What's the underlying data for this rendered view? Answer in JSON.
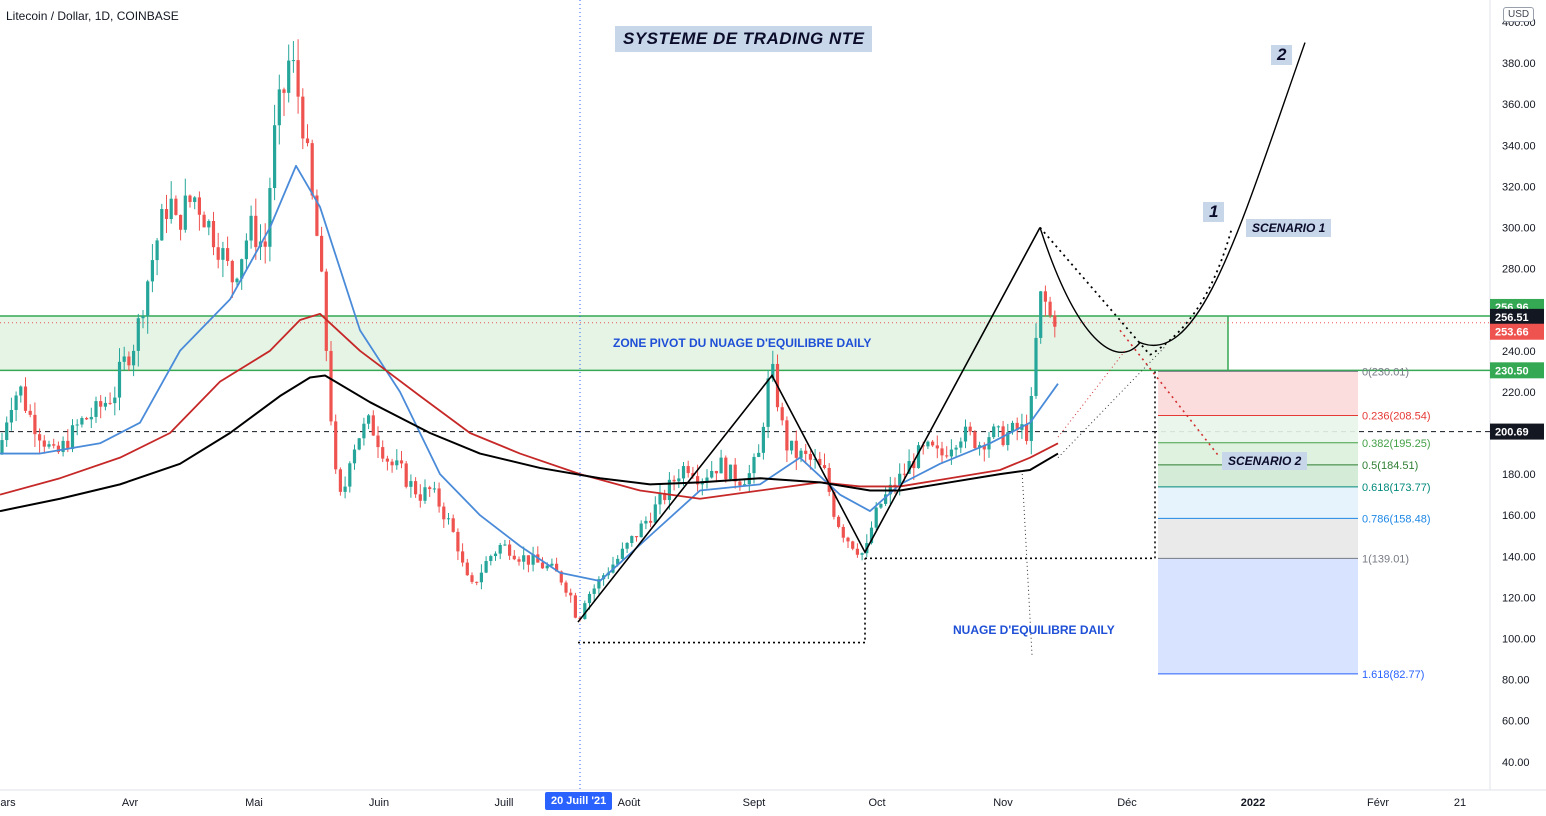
{
  "header": {
    "symbol": "Litecoin / Dollar, 1D, COINBASE"
  },
  "title_box": "SYSTEME DE TRADING NTE",
  "currency": "USD",
  "colors": {
    "up": "#26a69a",
    "down": "#ef5350",
    "ema_fast": "#4a8bd9",
    "ema_mid": "#c62828",
    "ema_slow": "#000000",
    "zone_fill": "#e6f4e6",
    "zone_border": "#34a853",
    "label_bg": "#c8d6ea",
    "fib_red": "#fcdcdc",
    "fib_blue": "#d6e2ff"
  },
  "labels": {
    "zone": "ZONE PIVOT DU NUAGE D'EQUILIBRE DAILY",
    "nuage": "NUAGE D'EQUILIBRE DAILY",
    "scenario1": "SCENARIO 1",
    "scenario2": "SCENARIO 2",
    "wave1": "1",
    "wave2": "2"
  },
  "date_tag": "20 Juill '21",
  "chart_data": {
    "type": "candlestick",
    "title": "Litecoin / Dollar, 1D, COINBASE",
    "xlabel": "",
    "ylabel": "",
    "ylim": [
      30,
      410
    ],
    "y_ticks": [
      40,
      60,
      80,
      100,
      120,
      140,
      160,
      180,
      200,
      220,
      240,
      260,
      280,
      300,
      320,
      340,
      360,
      380,
      400
    ],
    "x_ticks": [
      "ars",
      "Avr",
      "Mai",
      "Juin",
      "Juill",
      "Août",
      "Sept",
      "Oct",
      "Nov",
      "Déc",
      "2022",
      "Févr",
      "21"
    ],
    "price_labels": [
      {
        "value": 256.96,
        "text": "256.96",
        "color": "#34a853"
      },
      {
        "value": 256.51,
        "text": "256.51",
        "color": "#131722"
      },
      {
        "value": 253.66,
        "text": "253.66",
        "color": "#ef5350"
      },
      {
        "value": 230.5,
        "text": "230.50",
        "color": "#34a853"
      },
      {
        "value": 200.69,
        "text": "200.69",
        "color": "#131722"
      }
    ],
    "horizontal_lines": [
      {
        "name": "zone_top",
        "value": 256.96
      },
      {
        "name": "zone_bottom",
        "value": 230.5
      },
      {
        "name": "dashed_level",
        "value": 200.69
      }
    ],
    "fibonacci": [
      {
        "ratio": "0",
        "price": 230.01,
        "text": "0(230.01)",
        "color": "#787b86"
      },
      {
        "ratio": "0.236",
        "price": 208.54,
        "text": "0.236(208.54)",
        "color": "#e53935"
      },
      {
        "ratio": "0.382",
        "price": 195.25,
        "text": "0.382(195.25)",
        "color": "#43a047"
      },
      {
        "ratio": "0.5",
        "price": 184.51,
        "text": "0.5(184.51)",
        "color": "#2e7d32"
      },
      {
        "ratio": "0.618",
        "price": 173.77,
        "text": "0.618(173.77)",
        "color": "#00897b"
      },
      {
        "ratio": "0.786",
        "price": 158.48,
        "text": "0.786(158.48)",
        "color": "#1e88e5"
      },
      {
        "ratio": "1",
        "price": 139.01,
        "text": "1(139.01)",
        "color": "#787b86"
      },
      {
        "ratio": "1.618",
        "price": 82.77,
        "text": "1.618(82.77)",
        "color": "#2962ff"
      }
    ],
    "series": [
      {
        "kind": "ohlc_anchor_path",
        "name": "",
        "points": [
          [
            0,
            190
          ],
          [
            3,
            200
          ],
          [
            10,
            215
          ],
          [
            20,
            222
          ],
          [
            28,
            210
          ],
          [
            40,
            200
          ],
          [
            55,
            188
          ],
          [
            70,
            198
          ],
          [
            80,
            205
          ],
          [
            95,
            210
          ],
          [
            105,
            215
          ],
          [
            115,
            220
          ],
          [
            120,
            230
          ],
          [
            135,
            245
          ],
          [
            150,
            280
          ],
          [
            160,
            300
          ],
          [
            170,
            315
          ],
          [
            175,
            300
          ],
          [
            185,
            310
          ],
          [
            195,
            315
          ],
          [
            205,
            305
          ],
          [
            220,
            290
          ],
          [
            232,
            275
          ],
          [
            240,
            285
          ],
          [
            250,
            300
          ],
          [
            258,
            295
          ],
          [
            265,
            290
          ],
          [
            273,
            340
          ],
          [
            280,
            360
          ],
          [
            286,
            370
          ],
          [
            290,
            385
          ],
          [
            296,
            370
          ],
          [
            300,
            360
          ],
          [
            305,
            345
          ],
          [
            310,
            320
          ],
          [
            316,
            300
          ],
          [
            322,
            270
          ],
          [
            328,
            230
          ],
          [
            335,
            180
          ],
          [
            342,
            165
          ],
          [
            350,
            190
          ],
          [
            360,
            200
          ],
          [
            370,
            205
          ],
          [
            380,
            195
          ],
          [
            390,
            185
          ],
          [
            400,
            182
          ],
          [
            410,
            175
          ],
          [
            420,
            170
          ],
          [
            430,
            172
          ],
          [
            440,
            165
          ],
          [
            450,
            155
          ],
          [
            458,
            145
          ],
          [
            465,
            130
          ],
          [
            472,
            125
          ],
          [
            480,
            132
          ],
          [
            490,
            140
          ],
          [
            500,
            145
          ],
          [
            510,
            144
          ],
          [
            520,
            140
          ],
          [
            530,
            138
          ],
          [
            540,
            136
          ],
          [
            550,
            134
          ],
          [
            560,
            130
          ],
          [
            570,
            122
          ],
          [
            578,
            108
          ],
          [
            585,
            120
          ],
          [
            595,
            125
          ],
          [
            605,
            132
          ],
          [
            620,
            140
          ],
          [
            635,
            150
          ],
          [
            650,
            160
          ],
          [
            665,
            170
          ],
          [
            680,
            182
          ],
          [
            690,
            185
          ],
          [
            700,
            178
          ],
          [
            710,
            182
          ],
          [
            720,
            185
          ],
          [
            730,
            180
          ],
          [
            740,
            178
          ],
          [
            750,
            180
          ],
          [
            760,
            190
          ],
          [
            766,
            220
          ],
          [
            772,
            230
          ],
          [
            778,
            215
          ],
          [
            785,
            195
          ],
          [
            795,
            190
          ],
          [
            805,
            188
          ],
          [
            815,
            185
          ],
          [
            825,
            180
          ],
          [
            835,
            160
          ],
          [
            845,
            150
          ],
          [
            855,
            145
          ],
          [
            865,
            140
          ],
          [
            872,
            155
          ],
          [
            880,
            165
          ],
          [
            890,
            172
          ],
          [
            900,
            178
          ],
          [
            910,
            185
          ],
          [
            920,
            190
          ],
          [
            930,
            192
          ],
          [
            940,
            188
          ],
          [
            950,
            195
          ],
          [
            960,
            200
          ],
          [
            970,
            198
          ],
          [
            980,
            195
          ],
          [
            990,
            200
          ],
          [
            1000,
            198
          ],
          [
            1010,
            200
          ],
          [
            1020,
            202
          ],
          [
            1028,
            200
          ],
          [
            1033,
            220
          ],
          [
            1038,
            260
          ],
          [
            1043,
            270
          ],
          [
            1048,
            255
          ],
          [
            1053,
            258
          ],
          [
            1058,
            254
          ]
        ]
      },
      {
        "name": "",
        "kind": "ma_fast",
        "points": [
          [
            0,
            190
          ],
          [
            40,
            190
          ],
          [
            100,
            195
          ],
          [
            140,
            205
          ],
          [
            180,
            240
          ],
          [
            230,
            265
          ],
          [
            270,
            300
          ],
          [
            296,
            330
          ],
          [
            320,
            310
          ],
          [
            360,
            250
          ],
          [
            400,
            220
          ],
          [
            440,
            180
          ],
          [
            480,
            160
          ],
          [
            520,
            145
          ],
          [
            560,
            132
          ],
          [
            600,
            128
          ],
          [
            650,
            150
          ],
          [
            700,
            172
          ],
          [
            760,
            175
          ],
          [
            800,
            188
          ],
          [
            840,
            170
          ],
          [
            870,
            162
          ],
          [
            900,
            175
          ],
          [
            940,
            185
          ],
          [
            990,
            195
          ],
          [
            1030,
            205
          ],
          [
            1058,
            224
          ]
        ]
      },
      {
        "name": "",
        "kind": "ma_mid",
        "points": [
          [
            0,
            170
          ],
          [
            60,
            178
          ],
          [
            120,
            188
          ],
          [
            170,
            200
          ],
          [
            220,
            225
          ],
          [
            270,
            240
          ],
          [
            300,
            255
          ],
          [
            320,
            258
          ],
          [
            360,
            240
          ],
          [
            420,
            218
          ],
          [
            470,
            200
          ],
          [
            520,
            190
          ],
          [
            580,
            180
          ],
          [
            640,
            172
          ],
          [
            700,
            168
          ],
          [
            760,
            172
          ],
          [
            820,
            176
          ],
          [
            860,
            174
          ],
          [
            900,
            174
          ],
          [
            950,
            178
          ],
          [
            1000,
            182
          ],
          [
            1030,
            188
          ],
          [
            1058,
            195
          ]
        ]
      },
      {
        "name": "",
        "kind": "ma_slow",
        "points": [
          [
            0,
            162
          ],
          [
            60,
            168
          ],
          [
            120,
            175
          ],
          [
            180,
            185
          ],
          [
            230,
            200
          ],
          [
            280,
            218
          ],
          [
            310,
            227
          ],
          [
            325,
            228
          ],
          [
            370,
            215
          ],
          [
            430,
            200
          ],
          [
            480,
            190
          ],
          [
            540,
            183
          ],
          [
            600,
            178
          ],
          [
            650,
            175
          ],
          [
            700,
            176
          ],
          [
            760,
            178
          ],
          [
            820,
            176
          ],
          [
            870,
            172
          ],
          [
            900,
            172
          ],
          [
            950,
            176
          ],
          [
            1000,
            180
          ],
          [
            1030,
            182
          ],
          [
            1058,
            190
          ]
        ]
      }
    ],
    "drawings": [
      {
        "kind": "pattern_line",
        "points": [
          [
            578,
            108
          ],
          [
            772,
            228
          ],
          [
            865,
            142
          ],
          [
            1040,
            300
          ]
        ]
      },
      {
        "kind": "dotted_box",
        "points": [
          [
            578,
            98
          ],
          [
            865,
            98
          ],
          [
            865,
            139
          ]
        ]
      },
      {
        "kind": "dotted_level",
        "points": [
          [
            865,
            139
          ],
          [
            1155,
            139
          ]
        ]
      }
    ]
  }
}
